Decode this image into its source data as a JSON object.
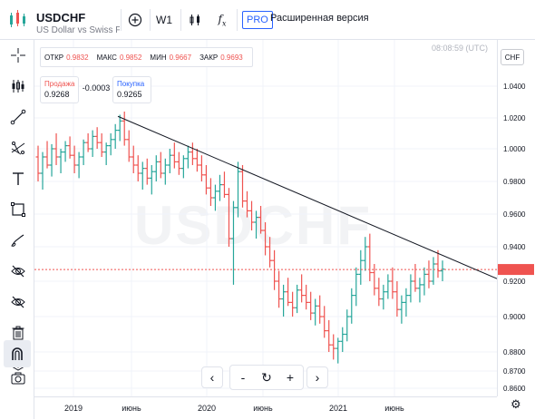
{
  "header": {
    "symbol": "USDCHF",
    "description": "US Dollar vs Swiss Franc",
    "add_symbol_icon": "plus-circle-icon",
    "interval": "W1",
    "indicators_icon": "fx-icon",
    "pro_badge": "PRO",
    "pro_label": "Расширенная версия"
  },
  "left_toolbar": {
    "tools": [
      {
        "icon": "crosshair-icon"
      },
      {
        "icon": "candles-icon"
      },
      {
        "icon": "trend-line-icon"
      },
      {
        "icon": "fib-icon"
      },
      {
        "icon": "text-icon"
      },
      {
        "icon": "rectangle-icon"
      },
      {
        "icon": "brush-icon"
      },
      {
        "icon": "eye-crossed-icon"
      },
      {
        "icon": "eye-crossed-icon"
      },
      {
        "icon": "trash-icon"
      },
      {
        "icon": "layers-icon"
      },
      {
        "icon": "magnet-icon"
      },
      {
        "icon": "camera-icon"
      }
    ]
  },
  "legend": {
    "open_label": "ОТКР",
    "open_value": "0.9832",
    "high_label": "МАКС",
    "high_value": "0.9852",
    "low_label": "МИН",
    "low_value": "0.9667",
    "close_label": "ЗАКР",
    "close_value": "0.9693"
  },
  "trade": {
    "sell_label": "Продажа",
    "sell_value": "0.9268",
    "spread": "-0.0003",
    "buy_label": "Покупка",
    "buy_value": "0.9265"
  },
  "clock": "08:08:59 (UTC)",
  "currency_button": "CHF",
  "watermark": "USDCHF",
  "navigation": {
    "prev": "‹",
    "zoom_out": "-",
    "reset": "↻",
    "zoom_in": "+",
    "next": "›"
  },
  "colors": {
    "up": "#26a69a",
    "down": "#ef5350",
    "current_price_line": "#ef5350",
    "trendline": "#131722",
    "accent": "#2962ff"
  },
  "chart_data": {
    "type": "ohlc",
    "symbol": "USDCHF",
    "timeframe": "W1",
    "y_ticks": [
      0.86,
      0.87,
      0.88,
      0.9,
      0.92,
      0.94,
      0.96,
      0.98,
      1.0,
      1.02,
      1.04
    ],
    "y_tick_labels": [
      "0.8600",
      "0.8700",
      "0.8800",
      "0.9000",
      "0.9200",
      "0.9400",
      "0.9600",
      "0.9800",
      "1.0000",
      "1.0200",
      "1.0400"
    ],
    "ylim": [
      0.855,
      1.05
    ],
    "x_labels": [
      "2019",
      "июнь",
      "2020",
      "июнь",
      "2021",
      "июнь"
    ],
    "grid": true,
    "current_price": 0.9268,
    "bars": [
      [
        0.995,
        1.002,
        0.98,
        0.985
      ],
      [
        0.985,
        0.998,
        0.975,
        0.995
      ],
      [
        0.995,
        1.005,
        0.988,
        0.99
      ],
      [
        0.99,
        1.003,
        0.983,
        1.0
      ],
      [
        1.0,
        1.01,
        0.99,
        0.995
      ],
      [
        0.995,
        1.0,
        0.985,
        0.998
      ],
      [
        0.998,
        1.005,
        0.992,
        1.002
      ],
      [
        1.002,
        1.008,
        0.994,
        0.996
      ],
      [
        0.996,
        1.002,
        0.985,
        0.99
      ],
      [
        0.99,
        0.998,
        0.982,
        0.995
      ],
      [
        0.995,
        1.006,
        0.99,
        1.004
      ],
      [
        1.004,
        1.01,
        0.998,
        1.0
      ],
      [
        1.0,
        1.012,
        0.995,
        1.008
      ],
      [
        1.008,
        1.014,
        1.0,
        1.004
      ],
      [
        1.004,
        1.01,
        0.995,
        0.998
      ],
      [
        0.998,
        1.004,
        0.99,
        1.002
      ],
      [
        1.002,
        1.01,
        0.996,
        1.006
      ],
      [
        1.006,
        1.016,
        1.0,
        1.012
      ],
      [
        1.012,
        1.022,
        1.005,
        1.018
      ],
      [
        1.018,
        1.024,
        1.002,
        1.006
      ],
      [
        1.006,
        1.012,
        0.992,
        0.995
      ],
      [
        0.995,
        1.002,
        0.985,
        0.99
      ],
      [
        0.99,
        0.996,
        0.98,
        0.985
      ],
      [
        0.985,
        0.992,
        0.975,
        0.988
      ],
      [
        0.988,
        0.994,
        0.978,
        0.982
      ],
      [
        0.982,
        0.99,
        0.972,
        0.986
      ],
      [
        0.986,
        0.996,
        0.98,
        0.992
      ],
      [
        0.992,
        0.998,
        0.982,
        0.985
      ],
      [
        0.985,
        0.994,
        0.978,
        0.99
      ],
      [
        0.99,
        1.0,
        0.985,
        0.996
      ],
      [
        0.996,
        1.004,
        0.988,
        0.992
      ],
      [
        0.992,
        0.998,
        0.984,
        0.988
      ],
      [
        0.988,
        0.996,
        0.982,
        0.994
      ],
      [
        0.994,
        1.002,
        0.988,
        0.998
      ],
      [
        0.998,
        1.004,
        0.99,
        0.994
      ],
      [
        0.994,
        1.0,
        0.986,
        0.99
      ],
      [
        0.99,
        0.996,
        0.98,
        0.984
      ],
      [
        0.984,
        0.99,
        0.972,
        0.976
      ],
      [
        0.976,
        0.982,
        0.965,
        0.97
      ],
      [
        0.97,
        0.978,
        0.962,
        0.974
      ],
      [
        0.974,
        0.984,
        0.968,
        0.978
      ],
      [
        0.978,
        0.986,
        0.97,
        0.972
      ],
      [
        0.972,
        0.976,
        0.94,
        0.945
      ],
      [
        0.945,
        0.968,
        0.918,
        0.964
      ],
      [
        0.964,
        0.992,
        0.958,
        0.986
      ],
      [
        0.986,
        0.99,
        0.964,
        0.968
      ],
      [
        0.968,
        0.974,
        0.958,
        0.962
      ],
      [
        0.962,
        0.968,
        0.95,
        0.955
      ],
      [
        0.955,
        0.962,
        0.945,
        0.958
      ],
      [
        0.958,
        0.965,
        0.948,
        0.95
      ],
      [
        0.95,
        0.955,
        0.935,
        0.94
      ],
      [
        0.94,
        0.946,
        0.928,
        0.932
      ],
      [
        0.932,
        0.938,
        0.915,
        0.92
      ],
      [
        0.92,
        0.926,
        0.905,
        0.91
      ],
      [
        0.91,
        0.918,
        0.9,
        0.914
      ],
      [
        0.914,
        0.922,
        0.906,
        0.908
      ],
      [
        0.908,
        0.914,
        0.9,
        0.905
      ],
      [
        0.905,
        0.918,
        0.902,
        0.915
      ],
      [
        0.915,
        0.924,
        0.908,
        0.912
      ],
      [
        0.912,
        0.918,
        0.904,
        0.908
      ],
      [
        0.908,
        0.914,
        0.898,
        0.902
      ],
      [
        0.902,
        0.91,
        0.895,
        0.906
      ],
      [
        0.906,
        0.912,
        0.896,
        0.9
      ],
      [
        0.9,
        0.906,
        0.888,
        0.892
      ],
      [
        0.892,
        0.898,
        0.88,
        0.884
      ],
      [
        0.884,
        0.89,
        0.876,
        0.882
      ],
      [
        0.882,
        0.888,
        0.874,
        0.886
      ],
      [
        0.886,
        0.894,
        0.88,
        0.89
      ],
      [
        0.89,
        0.904,
        0.886,
        0.9
      ],
      [
        0.9,
        0.916,
        0.896,
        0.912
      ],
      [
        0.912,
        0.928,
        0.906,
        0.924
      ],
      [
        0.924,
        0.938,
        0.918,
        0.932
      ],
      [
        0.932,
        0.946,
        0.926,
        0.94
      ],
      [
        0.94,
        0.948,
        0.92,
        0.925
      ],
      [
        0.925,
        0.93,
        0.912,
        0.916
      ],
      [
        0.916,
        0.922,
        0.906,
        0.91
      ],
      [
        0.91,
        0.918,
        0.904,
        0.914
      ],
      [
        0.914,
        0.924,
        0.91,
        0.92
      ],
      [
        0.92,
        0.928,
        0.91,
        0.914
      ],
      [
        0.914,
        0.92,
        0.9,
        0.904
      ],
      [
        0.904,
        0.912,
        0.896,
        0.908
      ],
      [
        0.908,
        0.916,
        0.9,
        0.912
      ],
      [
        0.912,
        0.924,
        0.908,
        0.92
      ],
      [
        0.92,
        0.93,
        0.914,
        0.916
      ],
      [
        0.916,
        0.922,
        0.908,
        0.918
      ],
      [
        0.918,
        0.928,
        0.912,
        0.924
      ],
      [
        0.924,
        0.932,
        0.916,
        0.92
      ],
      [
        0.92,
        0.934,
        0.918,
        0.93
      ],
      [
        0.93,
        0.938,
        0.922,
        0.926
      ],
      [
        0.926,
        0.932,
        0.92,
        0.927
      ]
    ],
    "trendline": [
      [
        0.016,
        1.021
      ],
      [
        0.53,
        0.939
      ]
    ]
  }
}
